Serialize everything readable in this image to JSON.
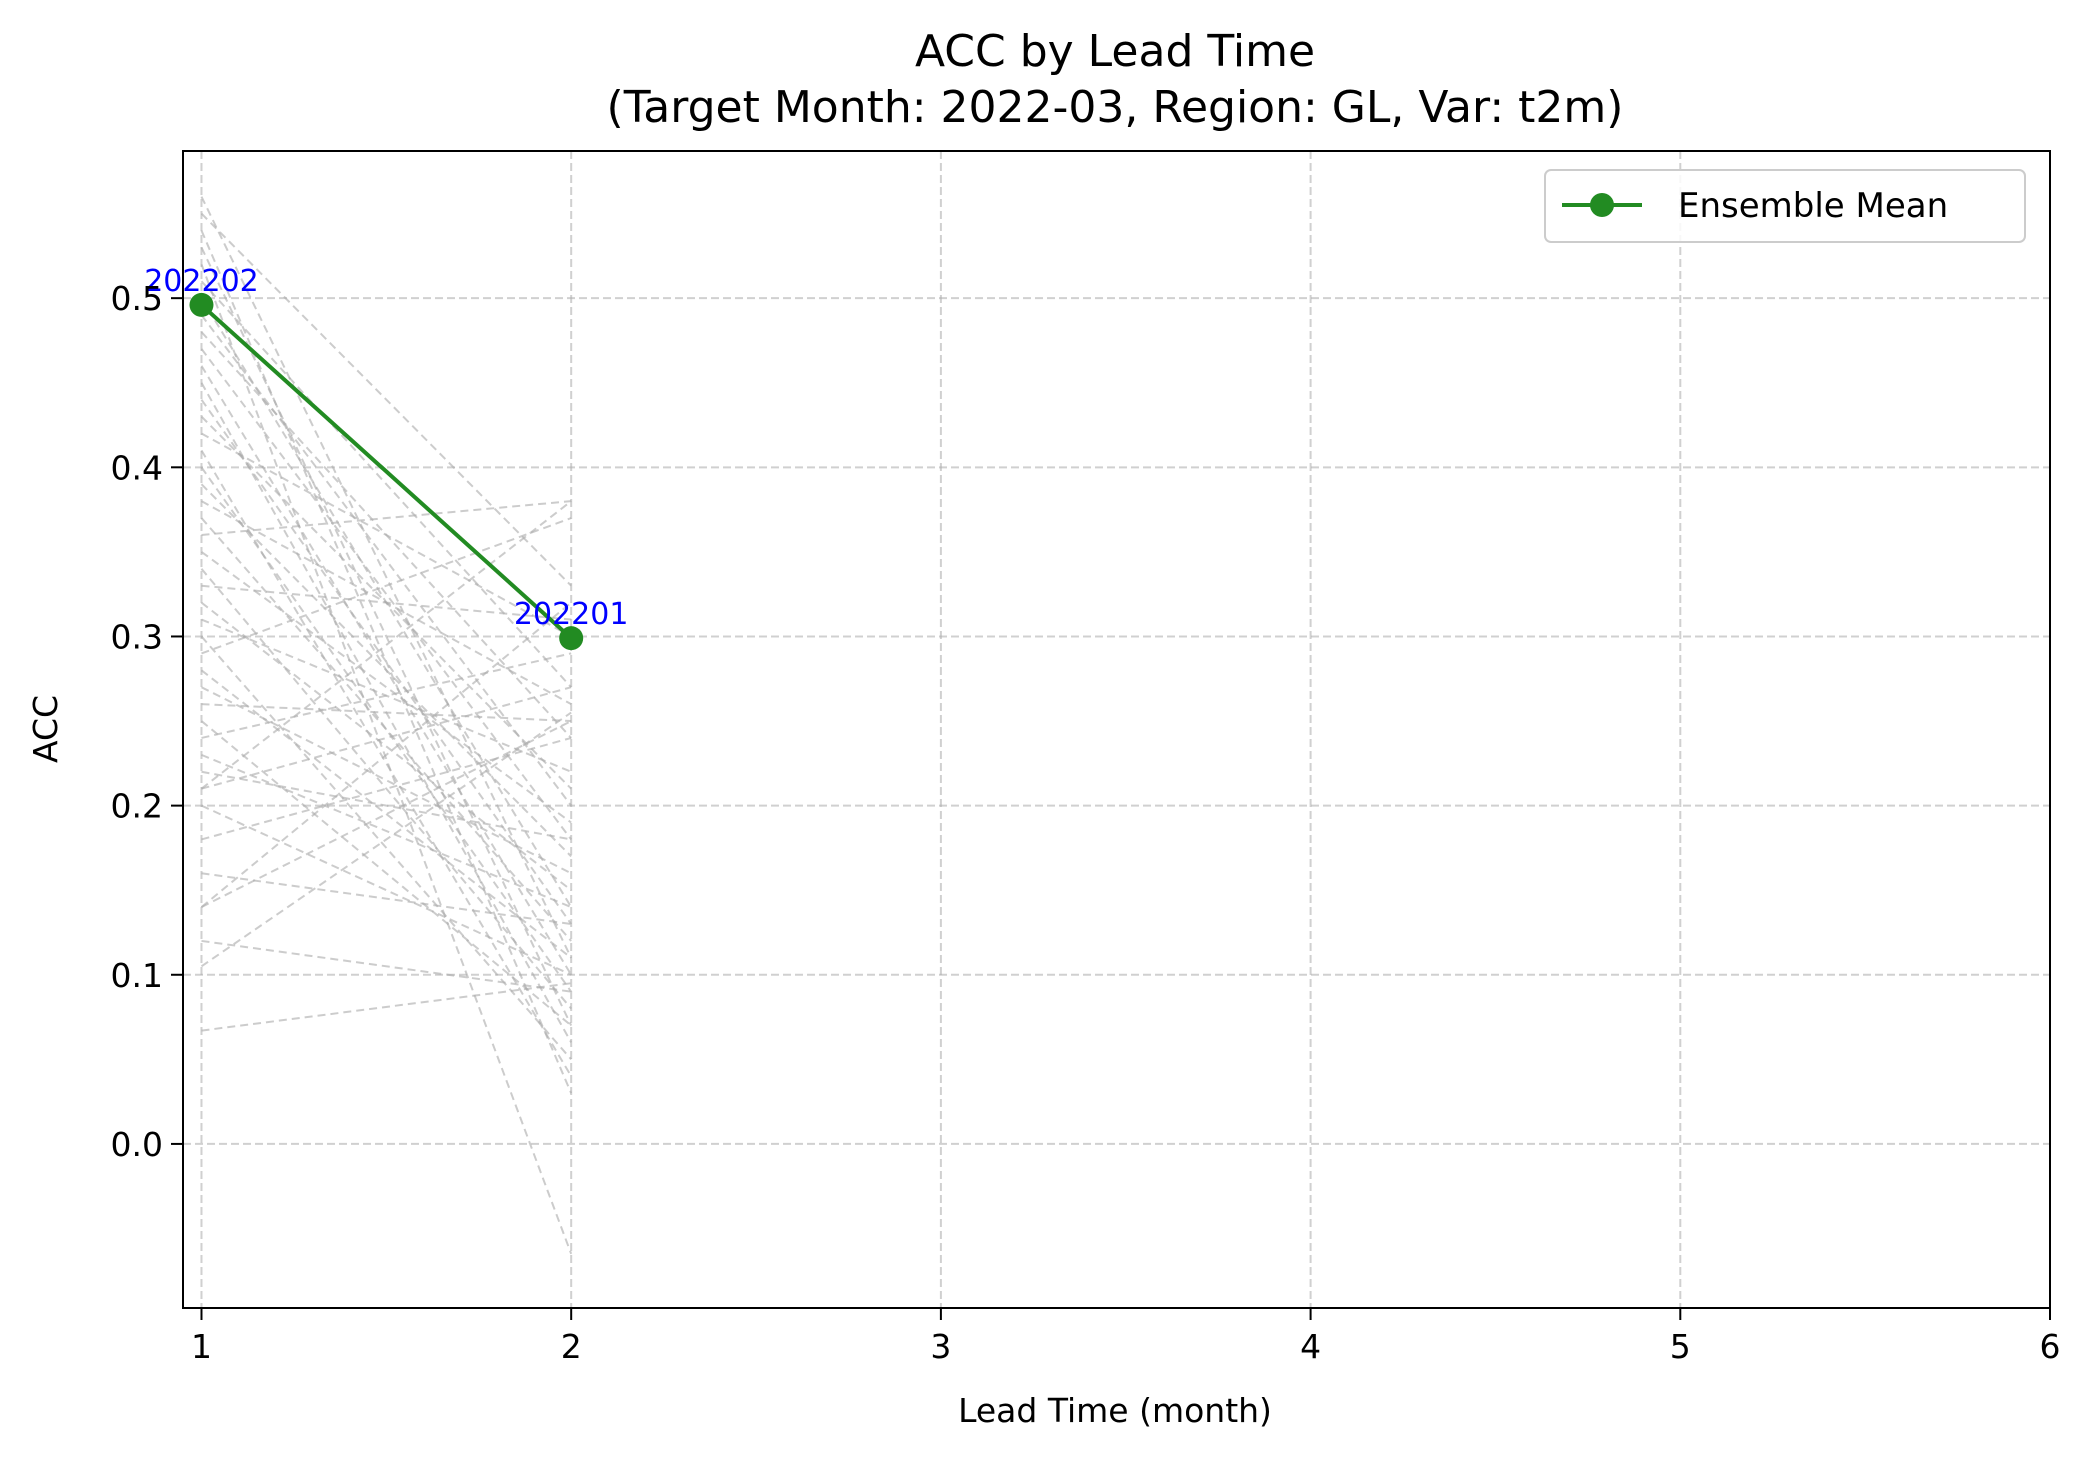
{
  "chart_data": {
    "type": "line",
    "title": "ACC by Lead Time",
    "subtitle": "(Target Month: 2022-03, Region: GL, Var: t2m)",
    "xlabel": "Lead Time (month)",
    "ylabel": "ACC",
    "xlim": [
      0.95,
      6.0
    ],
    "ylim": [
      -0.097,
      0.587
    ],
    "xticks": [
      1,
      2,
      3,
      4,
      5,
      6
    ],
    "yticks": [
      0.0,
      0.1,
      0.2,
      0.3,
      0.4,
      0.5
    ],
    "ytick_labels": [
      "0.0",
      "0.1",
      "0.2",
      "0.3",
      "0.4",
      "0.5"
    ],
    "grid": true,
    "legend": {
      "placement": "top-right",
      "entries": [
        "Ensemble Mean"
      ]
    },
    "colors": {
      "ensemble_mean": "#228B22",
      "members": "#aaaaaa",
      "annotation": "#0000ff"
    },
    "series": [
      {
        "name": "Ensemble Mean",
        "x": [
          1,
          2
        ],
        "values": [
          0.496,
          0.299
        ]
      }
    ],
    "members": [
      [
        0.56,
        0.11
      ],
      [
        0.55,
        0.33
      ],
      [
        0.54,
        0.03
      ],
      [
        0.53,
        0.07
      ],
      [
        0.52,
        -0.065
      ],
      [
        0.51,
        0.27
      ],
      [
        0.5,
        0.14
      ],
      [
        0.49,
        0.2
      ],
      [
        0.48,
        0.24
      ],
      [
        0.47,
        0.18
      ],
      [
        0.46,
        0.1
      ],
      [
        0.45,
        0.06
      ],
      [
        0.44,
        0.13
      ],
      [
        0.43,
        0.21
      ],
      [
        0.42,
        0.3
      ],
      [
        0.41,
        0.04
      ],
      [
        0.4,
        0.09
      ],
      [
        0.39,
        0.17
      ],
      [
        0.38,
        0.26
      ],
      [
        0.37,
        0.12
      ],
      [
        0.36,
        0.38
      ],
      [
        0.35,
        0.19
      ],
      [
        0.34,
        0.08
      ],
      [
        0.33,
        0.31
      ],
      [
        0.32,
        0.15
      ],
      [
        0.31,
        0.22
      ],
      [
        0.3,
        0.05
      ],
      [
        0.29,
        0.37
      ],
      [
        0.28,
        0.11
      ],
      [
        0.27,
        0.16
      ],
      [
        0.26,
        0.25
      ],
      [
        0.25,
        0.07
      ],
      [
        0.24,
        0.29
      ],
      [
        0.23,
        0.14
      ],
      [
        0.22,
        0.18
      ],
      [
        0.21,
        0.27
      ],
      [
        0.21,
        0.38
      ],
      [
        0.2,
        0.1
      ],
      [
        0.18,
        0.24
      ],
      [
        0.16,
        0.13
      ],
      [
        0.14,
        0.25
      ],
      [
        0.14,
        0.32
      ],
      [
        0.12,
        0.09
      ],
      [
        0.105,
        0.255
      ],
      [
        0.067,
        0.095
      ]
    ],
    "annotations": [
      {
        "text": "202202",
        "x": 1,
        "y": 0.496
      },
      {
        "text": "202201",
        "x": 2,
        "y": 0.299
      }
    ]
  }
}
